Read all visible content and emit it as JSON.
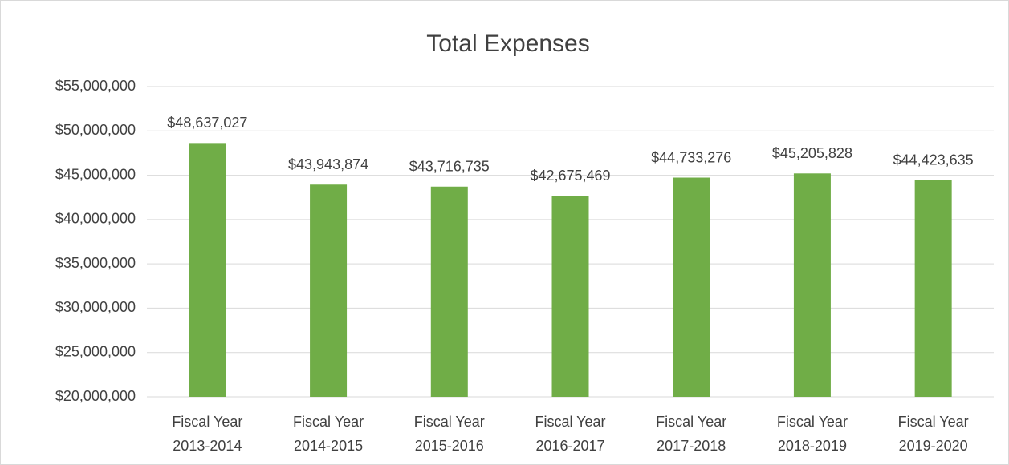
{
  "chart_data": {
    "type": "bar",
    "title": "Total Expenses",
    "categories": [
      "Fiscal Year 2013-2014",
      "Fiscal Year 2014-2015",
      "Fiscal Year 2015-2016",
      "Fiscal Year 2016-2017",
      "Fiscal Year 2017-2018",
      "Fiscal Year 2018-2019",
      "Fiscal Year 2019-2020"
    ],
    "values": [
      48637027,
      43943874,
      43716735,
      42675469,
      44733276,
      45205828,
      44423635
    ],
    "value_labels": [
      "$48,637,027",
      "$43,943,874",
      "$43,716,735",
      "$42,675,469",
      "$44,733,276",
      "$45,205,828",
      "$44,423,635"
    ],
    "color": "#70ad47",
    "ylim": [
      20000000,
      55000000
    ],
    "yticks": [
      {
        "value": 20000000,
        "label": "$20,000,000"
      },
      {
        "value": 25000000,
        "label": "$25,000,000"
      },
      {
        "value": 30000000,
        "label": "$30,000,000"
      },
      {
        "value": 35000000,
        "label": "$35,000,000"
      },
      {
        "value": 40000000,
        "label": "$40,000,000"
      },
      {
        "value": 45000000,
        "label": "$45,000,000"
      },
      {
        "value": 50000000,
        "label": "$50,000,000"
      },
      {
        "value": 55000000,
        "label": "$55,000,000"
      }
    ],
    "grid": true
  }
}
